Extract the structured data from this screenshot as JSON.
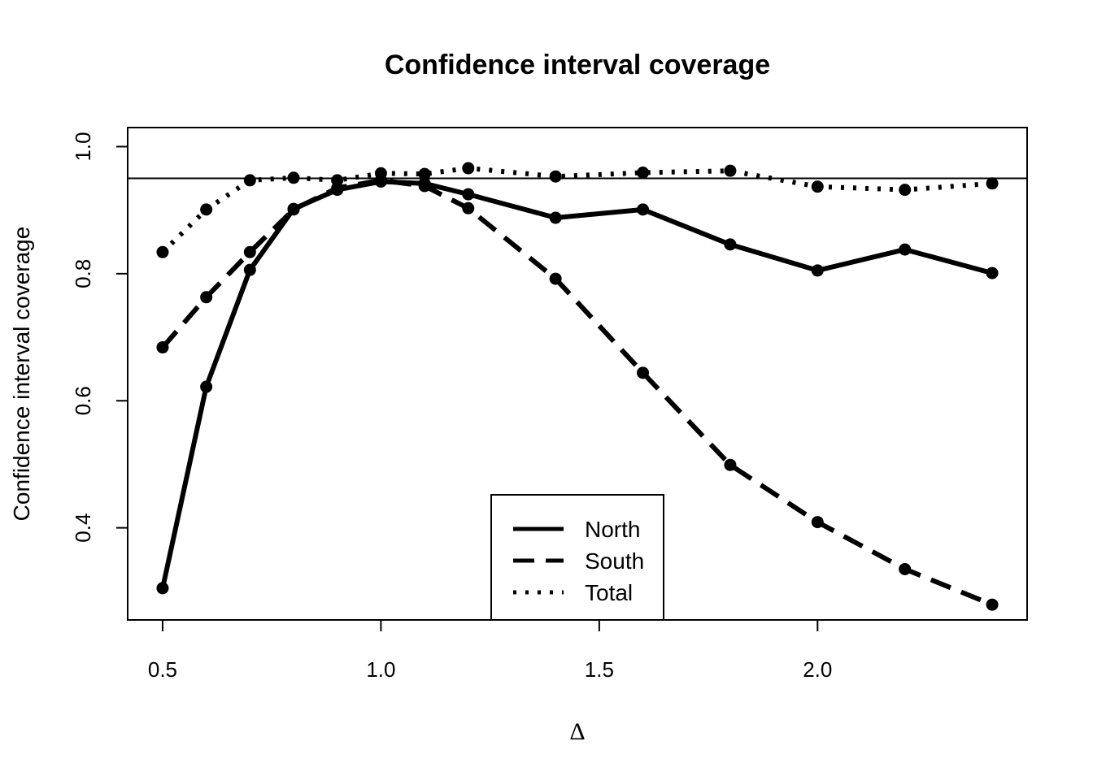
{
  "chart_data": {
    "type": "line",
    "title": "Confidence interval coverage",
    "xlabel": "Δ",
    "ylabel": "Confidence interval coverage",
    "x": [
      0.5,
      0.6,
      0.7,
      0.8,
      0.9,
      1.0,
      1.1,
      1.2,
      1.4,
      1.6,
      1.8,
      2.0,
      2.2,
      2.4
    ],
    "series": [
      {
        "name": "North",
        "dash": "solid",
        "values": [
          0.305,
          0.622,
          0.806,
          0.902,
          0.932,
          0.945,
          0.942,
          0.925,
          0.888,
          0.901,
          0.846,
          0.805,
          0.838,
          0.801
        ]
      },
      {
        "name": "South",
        "dash": "dashed",
        "values": [
          0.684,
          0.763,
          0.834,
          0.901,
          0.935,
          0.947,
          0.938,
          0.903,
          0.792,
          0.644,
          0.499,
          0.409,
          0.335,
          0.279
        ]
      },
      {
        "name": "Total",
        "dash": "dotted",
        "values": [
          0.834,
          0.901,
          0.947,
          0.951,
          0.947,
          0.958,
          0.957,
          0.966,
          0.953,
          0.959,
          0.962,
          0.937,
          0.932,
          0.942
        ]
      }
    ],
    "reference_line_y": 0.95,
    "xlim": [
      0.42,
      2.48
    ],
    "ylim": [
      0.255,
      1.03
    ],
    "xticks": [
      0.5,
      1.0,
      1.5,
      2.0
    ],
    "xtick_labels": [
      "0.5",
      "1.0",
      "1.5",
      "2.0"
    ],
    "yticks": [
      0.4,
      0.6,
      0.8,
      1.0
    ],
    "ytick_labels": [
      "0.4",
      "0.6",
      "0.8",
      "1.0"
    ],
    "grid": false,
    "legend_position": "bottom-center",
    "color": "#000000"
  }
}
